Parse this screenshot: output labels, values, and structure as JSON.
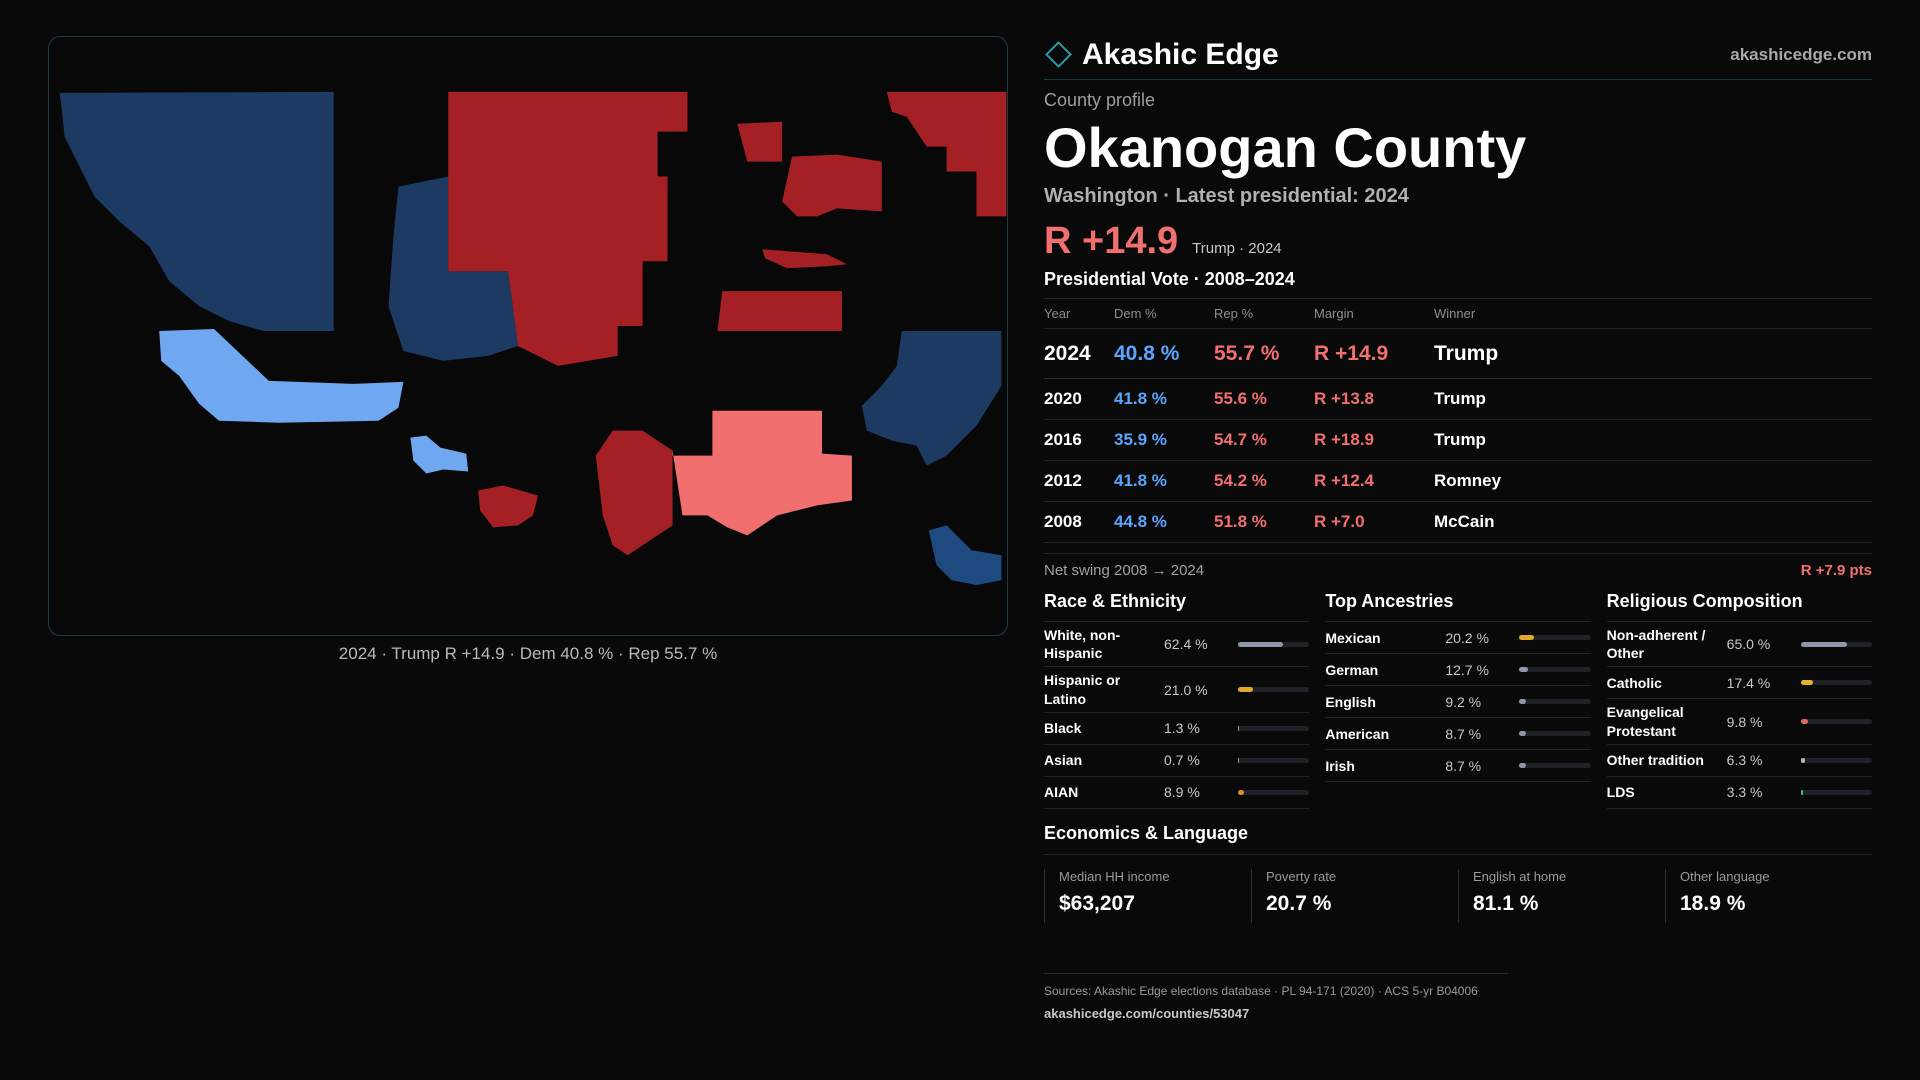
{
  "colors": {
    "background": "#0a0909",
    "accent": "#2b9aa4",
    "dem": "#5aa6ff",
    "rep": "#f07070",
    "map_dem_strong": "#1c3a62",
    "map_dem_light": "#6fa8f0",
    "map_rep_strong": "#a52024",
    "map_rep_light": "#f26f6f"
  },
  "map": {
    "caption": "2024 · Trump R +14.9 · Dem 40.8 % · Rep 55.7 %"
  },
  "brand": {
    "name": "Akashic Edge",
    "url": "akashicedge.com",
    "icon": "diamond-icon"
  },
  "profile": {
    "eyebrow": "County profile",
    "title": "Okanogan County",
    "subtitle": "Washington · Latest presidential: 2024",
    "margin": "R +14.9",
    "margin_note": "Trump · 2024"
  },
  "votes": {
    "title": "Presidential Vote · 2008–2024",
    "headers": [
      "Year",
      "Dem %",
      "Rep %",
      "Margin",
      "Winner"
    ],
    "rows": [
      {
        "year": "2024",
        "dem": "40.8 %",
        "rep": "55.7 %",
        "margin": "R +14.9",
        "winner": "Trump"
      },
      {
        "year": "2020",
        "dem": "41.8 %",
        "rep": "55.6 %",
        "margin": "R +13.8",
        "winner": "Trump"
      },
      {
        "year": "2016",
        "dem": "35.9 %",
        "rep": "54.7 %",
        "margin": "R +18.9",
        "winner": "Trump"
      },
      {
        "year": "2012",
        "dem": "41.8 %",
        "rep": "54.2 %",
        "margin": "R +12.4",
        "winner": "Romney"
      },
      {
        "year": "2008",
        "dem": "44.8 %",
        "rep": "51.8 %",
        "margin": "R +7.0",
        "winner": "McCain"
      }
    ],
    "swing_label": "Net swing 2008 → 2024",
    "swing_value": "R +7.9 pts"
  },
  "race": {
    "title": "Race & Ethnicity",
    "items": [
      {
        "label": "White, non-Hispanic",
        "value": "62.4 %",
        "fraction": 0.624,
        "color": "#8f98a8"
      },
      {
        "label": "Hispanic or Latino",
        "value": "21.0 %",
        "fraction": 0.21,
        "color": "#e2a82a"
      },
      {
        "label": "Black",
        "value": "1.3 %",
        "fraction": 0.013,
        "color": "#8f98a8"
      },
      {
        "label": "Asian",
        "value": "0.7 %",
        "fraction": 0.007,
        "color": "#8f98a8"
      },
      {
        "label": "AIAN",
        "value": "8.9 %",
        "fraction": 0.089,
        "color": "#e08a2a"
      }
    ]
  },
  "ancestry": {
    "title": "Top Ancestries",
    "items": [
      {
        "label": "Mexican",
        "value": "20.2 %",
        "fraction": 0.202,
        "color": "#e2a82a"
      },
      {
        "label": "German",
        "value": "12.7 %",
        "fraction": 0.127,
        "color": "#8f98a8"
      },
      {
        "label": "English",
        "value": "9.2 %",
        "fraction": 0.092,
        "color": "#8f98a8"
      },
      {
        "label": "American",
        "value": "8.7 %",
        "fraction": 0.087,
        "color": "#8f98a8"
      },
      {
        "label": "Irish",
        "value": "8.7 %",
        "fraction": 0.087,
        "color": "#8f98a8"
      }
    ]
  },
  "religion": {
    "title": "Religious Composition",
    "items": [
      {
        "label": "Non-adherent / Other",
        "value": "65.0 %",
        "fraction": 0.65,
        "color": "#8f98a8"
      },
      {
        "label": "Catholic",
        "value": "17.4 %",
        "fraction": 0.174,
        "color": "#e2b42a"
      },
      {
        "label": "Evangelical Protestant",
        "value": "9.8 %",
        "fraction": 0.098,
        "color": "#e06a5a"
      },
      {
        "label": "Other tradition",
        "value": "6.3 %",
        "fraction": 0.063,
        "color": "#b8b8b8"
      },
      {
        "label": "LDS",
        "value": "3.3 %",
        "fraction": 0.033,
        "color": "#3ac0a0"
      }
    ]
  },
  "economics": {
    "title": "Economics & Language",
    "items": [
      {
        "label": "Median HH income",
        "value": "$63,207"
      },
      {
        "label": "Poverty rate",
        "value": "20.7 %"
      },
      {
        "label": "English at home",
        "value": "81.1 %"
      },
      {
        "label": "Other language",
        "value": "18.9 %"
      }
    ]
  },
  "footer": {
    "sources": "Sources: Akashic Edge elections database · PL 94-171 (2020) · ACS 5-yr B04006",
    "link": "akashicedge.com/counties/53047"
  }
}
